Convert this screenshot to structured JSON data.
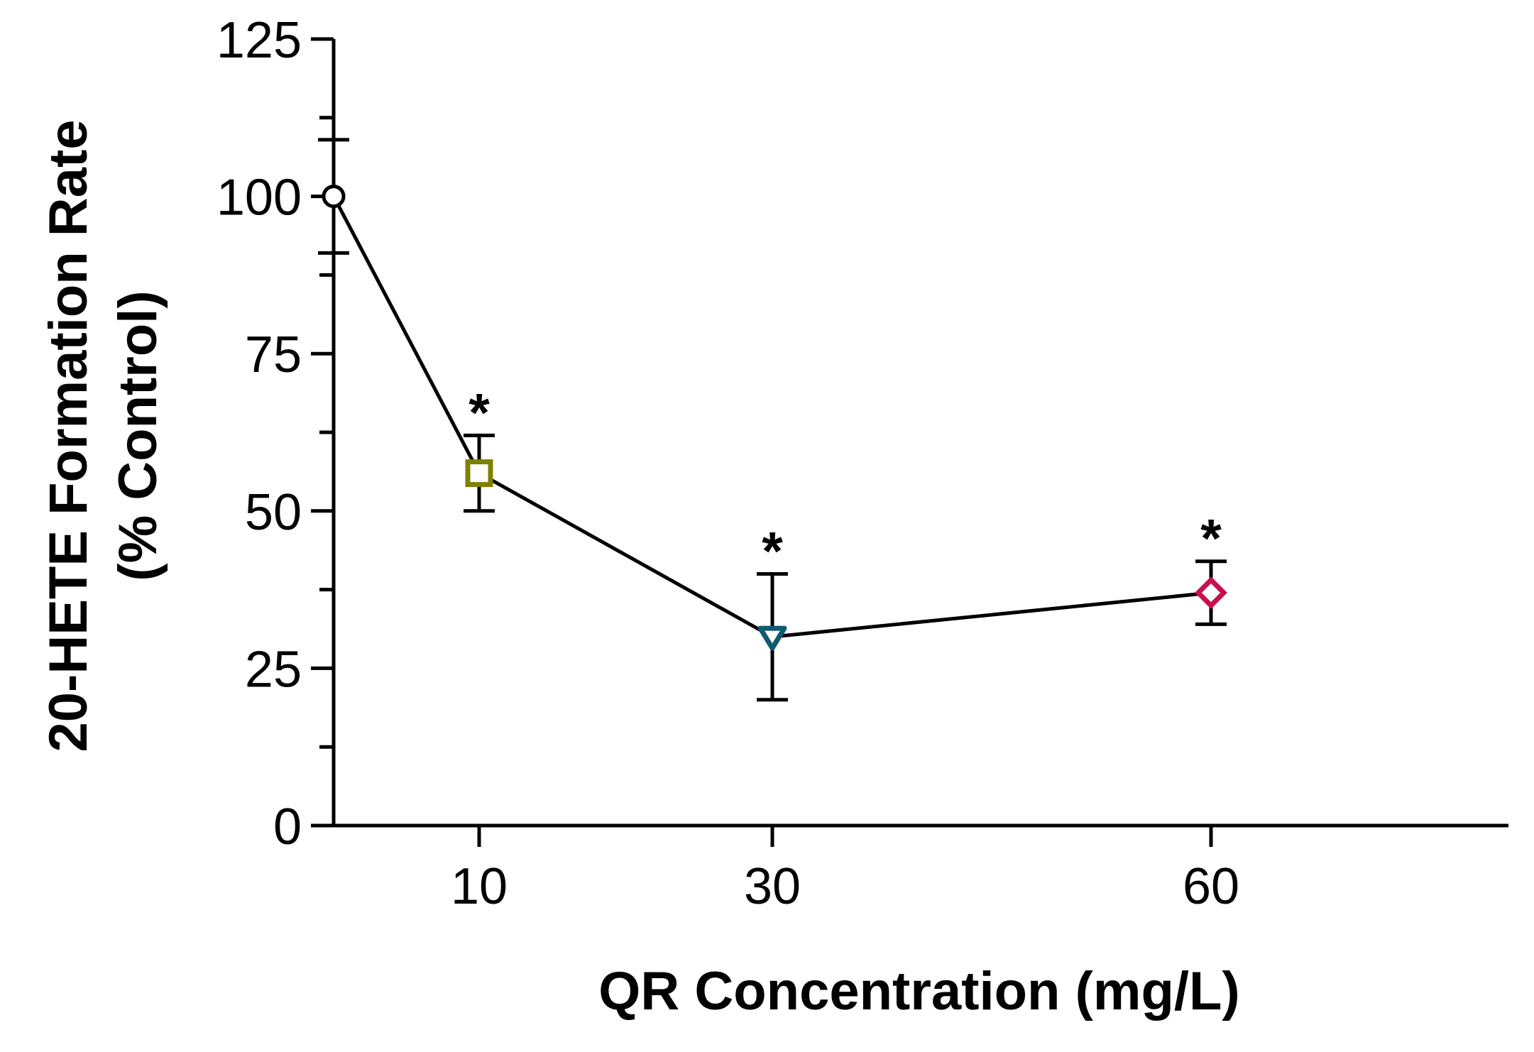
{
  "chart_data": {
    "type": "line",
    "title": "",
    "xlabel": "QR Concentration (mg/L)",
    "ylabel_line1": "20-HETE  Formation Rate",
    "ylabel_line2": "(% Control)",
    "ylim": [
      0,
      125
    ],
    "yticks": [
      0,
      25,
      50,
      75,
      100,
      125
    ],
    "ytick_labels": [
      "0",
      "25",
      "50",
      "75",
      "100",
      "125"
    ],
    "x_categories": [
      "",
      "10",
      "30",
      "60"
    ],
    "points": [
      {
        "x": "0",
        "y": 100,
        "err": 9,
        "marker": "circle",
        "color": "#000000",
        "sig": ""
      },
      {
        "x": "10",
        "y": 56,
        "err": 6,
        "marker": "square",
        "color": "#808000",
        "sig": "*"
      },
      {
        "x": "30",
        "y": 30,
        "err": 10,
        "marker": "triangle-down",
        "color": "#0f5a6e",
        "sig": "*"
      },
      {
        "x": "60",
        "y": 37,
        "err": 5,
        "marker": "diamond",
        "color": "#c8104e",
        "sig": "*"
      }
    ],
    "grid": false,
    "legend": "none"
  }
}
